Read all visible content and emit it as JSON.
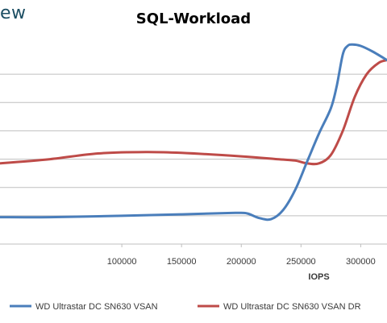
{
  "watermark": "ew",
  "chart_data": {
    "type": "line",
    "title": "SQL-Workload",
    "xlabel": "IOPS",
    "ylabel": "",
    "xlim": [
      -2000,
      322000
    ],
    "ylim": [
      0,
      7
    ],
    "x_ticks": [
      100000,
      150000,
      200000,
      250000,
      300000
    ],
    "x_tick_labels": [
      "100000",
      "150000",
      "200000",
      "250000",
      "300000"
    ],
    "y_gridlines": [
      1,
      2,
      3,
      4,
      5,
      6
    ],
    "grid": true,
    "legend_position": "bottom",
    "series": [
      {
        "name": "WD Ultrastar DC SN630 VSAN",
        "color": "#4a7ebb",
        "x": [
          -2000,
          40000,
          100000,
          150000,
          195000,
          205000,
          215000,
          225000,
          235000,
          245000,
          255000,
          265000,
          275000,
          280000,
          285000,
          289000,
          293000,
          300000,
          310000,
          322000
        ],
        "y": [
          0.95,
          0.95,
          1.0,
          1.05,
          1.1,
          1.08,
          0.92,
          0.88,
          1.2,
          1.9,
          2.9,
          3.9,
          4.8,
          5.6,
          6.7,
          7.0,
          7.05,
          7.0,
          6.8,
          6.5
        ]
      },
      {
        "name": "WD Ultrastar DC SN630 VSAN DR",
        "color": "#be4b48",
        "x": [
          -2000,
          40000,
          80000,
          120000,
          150000,
          200000,
          230000,
          245000,
          255000,
          265000,
          275000,
          285000,
          295000,
          305000,
          315000,
          322000
        ],
        "y": [
          2.85,
          3.0,
          3.2,
          3.25,
          3.22,
          3.1,
          3.0,
          2.95,
          2.85,
          2.85,
          3.15,
          4.0,
          5.2,
          6.0,
          6.4,
          6.5
        ]
      }
    ]
  }
}
